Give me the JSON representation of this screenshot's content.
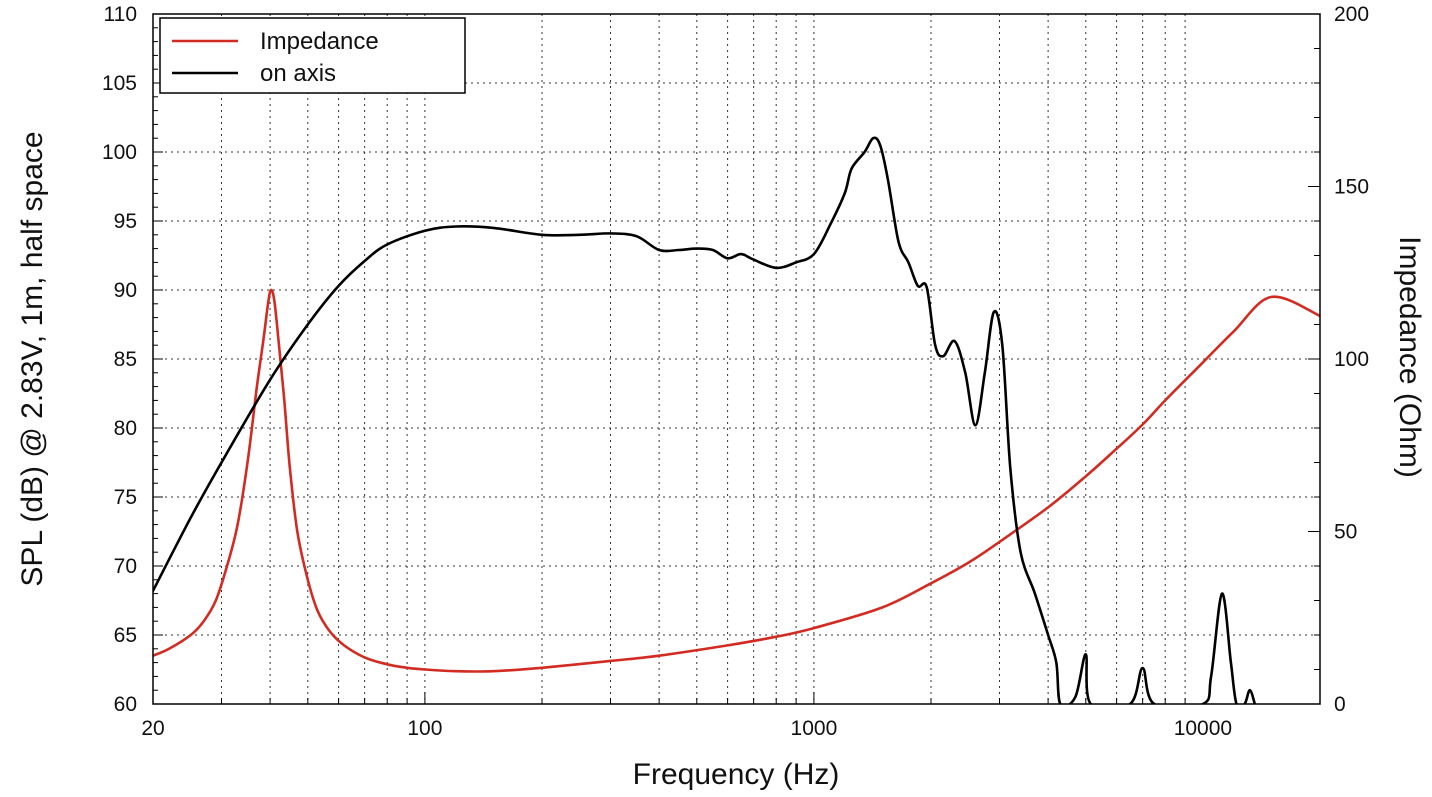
{
  "chart_data": {
    "type": "line",
    "x_scale": "log",
    "xlabel": "Frequency (Hz)",
    "ylabel_left": "SPL (dB) @ 2.83V, 1m, half space",
    "ylabel_right": "Impedance (Ohm)",
    "xlim": [
      20,
      20000
    ],
    "ylim_left": [
      60,
      110
    ],
    "ylim_right": [
      0,
      200
    ],
    "x_ticks": [
      20,
      100,
      1000,
      10000
    ],
    "y_ticks_left": [
      60,
      65,
      70,
      75,
      80,
      85,
      90,
      95,
      100,
      105,
      110
    ],
    "y_ticks_right": [
      0,
      50,
      100,
      150,
      200
    ],
    "grid": true,
    "legend_position": "top-left",
    "series": [
      {
        "name": "Impedance",
        "axis": "right",
        "color": "#d22b22",
        "points": [
          [
            20,
            14
          ],
          [
            22,
            16
          ],
          [
            25,
            20
          ],
          [
            27,
            24
          ],
          [
            29,
            30
          ],
          [
            31,
            40
          ],
          [
            33,
            52
          ],
          [
            35,
            70
          ],
          [
            37,
            92
          ],
          [
            38.5,
            106
          ],
          [
            39.5,
            116
          ],
          [
            40.2,
            120
          ],
          [
            41,
            117
          ],
          [
            42,
            106
          ],
          [
            43.5,
            88
          ],
          [
            45,
            68
          ],
          [
            47,
            50
          ],
          [
            50,
            36
          ],
          [
            53,
            27
          ],
          [
            57,
            21
          ],
          [
            62,
            17
          ],
          [
            70,
            13.5
          ],
          [
            80,
            11.5
          ],
          [
            90,
            10.5
          ],
          [
            100,
            10
          ],
          [
            120,
            9.5
          ],
          [
            150,
            9.5
          ],
          [
            200,
            10.5
          ],
          [
            300,
            12.5
          ],
          [
            400,
            14
          ],
          [
            600,
            17
          ],
          [
            800,
            19.5
          ],
          [
            1000,
            22
          ],
          [
            1500,
            28
          ],
          [
            2000,
            35
          ],
          [
            2500,
            41
          ],
          [
            3000,
            47
          ],
          [
            4000,
            57
          ],
          [
            5000,
            66
          ],
          [
            6000,
            74
          ],
          [
            7000,
            81
          ],
          [
            8000,
            88
          ],
          [
            10000,
            99
          ],
          [
            12000,
            108
          ],
          [
            15000,
            118
          ],
          [
            20000,
            112.5
          ]
        ]
      },
      {
        "name": "on axis",
        "axis": "left",
        "color": "#000000",
        "points": [
          [
            20,
            68.2
          ],
          [
            25,
            73.5
          ],
          [
            30,
            77.5
          ],
          [
            40,
            83.5
          ],
          [
            50,
            87.5
          ],
          [
            60,
            90.3
          ],
          [
            70,
            92.1
          ],
          [
            80,
            93.3
          ],
          [
            100,
            94.3
          ],
          [
            120,
            94.6
          ],
          [
            150,
            94.5
          ],
          [
            200,
            94
          ],
          [
            250,
            94
          ],
          [
            300,
            94.1
          ],
          [
            350,
            93.9
          ],
          [
            400,
            92.9
          ],
          [
            450,
            92.9
          ],
          [
            500,
            93
          ],
          [
            550,
            92.9
          ],
          [
            600,
            92.3
          ],
          [
            650,
            92.6
          ],
          [
            700,
            92.2
          ],
          [
            800,
            91.6
          ],
          [
            900,
            92
          ],
          [
            1000,
            92.6
          ],
          [
            1100,
            94.7
          ],
          [
            1200,
            97
          ],
          [
            1250,
            98.8
          ],
          [
            1350,
            100
          ],
          [
            1420,
            101
          ],
          [
            1480,
            100.5
          ],
          [
            1550,
            98
          ],
          [
            1650,
            93.5
          ],
          [
            1750,
            92
          ],
          [
            1850,
            90.3
          ],
          [
            1950,
            90.2
          ],
          [
            2050,
            86
          ],
          [
            2150,
            85.2
          ],
          [
            2300,
            86.3
          ],
          [
            2450,
            84
          ],
          [
            2600,
            80.2
          ],
          [
            2750,
            84
          ],
          [
            2900,
            88.4
          ],
          [
            3050,
            86
          ],
          [
            3200,
            77
          ],
          [
            3400,
            71
          ],
          [
            3700,
            68
          ],
          [
            4000,
            65
          ],
          [
            4200,
            63
          ],
          [
            4300,
            60
          ],
          [
            4700,
            60.5
          ],
          [
            5000,
            63.6
          ],
          [
            5150,
            60
          ],
          [
            6500,
            60
          ],
          [
            7000,
            62.6
          ],
          [
            7500,
            60
          ],
          [
            10000,
            60
          ],
          [
            10500,
            62
          ],
          [
            11200,
            68
          ],
          [
            11800,
            63
          ],
          [
            12200,
            60
          ],
          [
            12800,
            60
          ],
          [
            13200,
            61
          ],
          [
            13600,
            60
          ]
        ]
      }
    ]
  }
}
